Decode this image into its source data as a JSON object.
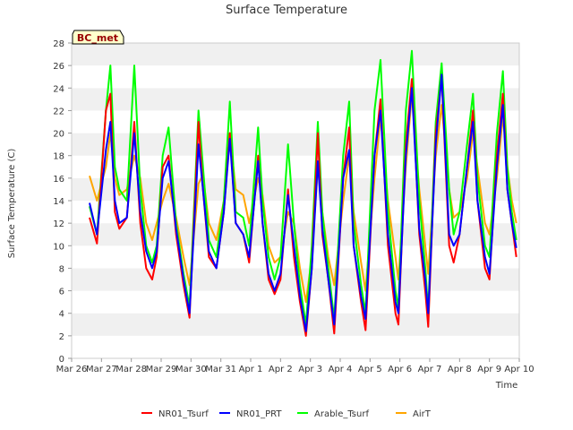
{
  "chart_data": {
    "type": "line",
    "title": "Surface Temperature",
    "xlabel": "Time",
    "ylabel": "Surface Temperature (C)",
    "site_label": "BC_met",
    "xlim": [
      0,
      15
    ],
    "ylim": [
      0,
      28
    ],
    "x_ticks": [
      {
        "v": 0,
        "label": "Mar 26"
      },
      {
        "v": 1,
        "label": "Mar 27"
      },
      {
        "v": 2,
        "label": "Mar 28"
      },
      {
        "v": 3,
        "label": "Mar 29"
      },
      {
        "v": 4,
        "label": "Mar 30"
      },
      {
        "v": 5,
        "label": "Mar 31"
      },
      {
        "v": 6,
        "label": "Apr 1"
      },
      {
        "v": 7,
        "label": "Apr 2"
      },
      {
        "v": 8,
        "label": "Apr 3"
      },
      {
        "v": 9,
        "label": "Apr 4"
      },
      {
        "v": 10,
        "label": "Apr 5"
      },
      {
        "v": 11,
        "label": "Apr 6"
      },
      {
        "v": 12,
        "label": "Apr 7"
      },
      {
        "v": 13,
        "label": "Apr 8"
      },
      {
        "v": 14,
        "label": "Apr 9"
      },
      {
        "v": 15,
        "label": "Apr 10"
      }
    ],
    "y_ticks": [
      0,
      2,
      4,
      6,
      8,
      10,
      12,
      14,
      16,
      18,
      20,
      22,
      24,
      26,
      28
    ],
    "grid": "horizontal bands",
    "legend_position": "bottom",
    "series": [
      {
        "name": "NR01_Tsurf",
        "color": "#ff0000",
        "points": [
          [
            0.6,
            12.5
          ],
          [
            0.85,
            10.2
          ],
          [
            1.15,
            22
          ],
          [
            1.3,
            23.5
          ],
          [
            1.45,
            13
          ],
          [
            1.6,
            11.5
          ],
          [
            1.85,
            12.5
          ],
          [
            2.1,
            21
          ],
          [
            2.3,
            12
          ],
          [
            2.5,
            8
          ],
          [
            2.7,
            7
          ],
          [
            2.85,
            9
          ],
          [
            3.05,
            17
          ],
          [
            3.25,
            18
          ],
          [
            3.5,
            11
          ],
          [
            3.75,
            6.5
          ],
          [
            3.95,
            3.6
          ],
          [
            4.25,
            21
          ],
          [
            4.4,
            15
          ],
          [
            4.6,
            9
          ],
          [
            4.85,
            8
          ],
          [
            5.1,
            13
          ],
          [
            5.3,
            20
          ],
          [
            5.5,
            12
          ],
          [
            5.75,
            11
          ],
          [
            5.95,
            8.5
          ],
          [
            6.25,
            18
          ],
          [
            6.4,
            12
          ],
          [
            6.6,
            7
          ],
          [
            6.8,
            5.7
          ],
          [
            7.0,
            7
          ],
          [
            7.25,
            15
          ],
          [
            7.45,
            9
          ],
          [
            7.65,
            5
          ],
          [
            7.85,
            2
          ],
          [
            8.05,
            8
          ],
          [
            8.25,
            20
          ],
          [
            8.4,
            11
          ],
          [
            8.6,
            7
          ],
          [
            8.8,
            2.2
          ],
          [
            9.1,
            16
          ],
          [
            9.3,
            20.5
          ],
          [
            9.45,
            10
          ],
          [
            9.7,
            5
          ],
          [
            9.85,
            2.5
          ],
          [
            10.15,
            18
          ],
          [
            10.35,
            23
          ],
          [
            10.6,
            10
          ],
          [
            10.85,
            4
          ],
          [
            10.95,
            3
          ],
          [
            11.2,
            19
          ],
          [
            11.4,
            24.8
          ],
          [
            11.65,
            11
          ],
          [
            11.85,
            6
          ],
          [
            11.95,
            2.8
          ],
          [
            12.2,
            20
          ],
          [
            12.4,
            25
          ],
          [
            12.65,
            10
          ],
          [
            12.8,
            8.5
          ],
          [
            13.0,
            11
          ],
          [
            13.25,
            17
          ],
          [
            13.45,
            22
          ],
          [
            13.6,
            14
          ],
          [
            13.85,
            8
          ],
          [
            14.0,
            7
          ],
          [
            14.25,
            18
          ],
          [
            14.45,
            23.5
          ],
          [
            14.6,
            15
          ],
          [
            14.75,
            12
          ],
          [
            14.9,
            9
          ]
        ]
      },
      {
        "name": "NR01_PRT",
        "color": "#0000ff",
        "points": [
          [
            0.6,
            13.8
          ],
          [
            0.85,
            11
          ],
          [
            1.15,
            18.5
          ],
          [
            1.3,
            21
          ],
          [
            1.45,
            14
          ],
          [
            1.6,
            12
          ],
          [
            1.85,
            12.5
          ],
          [
            2.1,
            20
          ],
          [
            2.3,
            13
          ],
          [
            2.5,
            9.5
          ],
          [
            2.7,
            8
          ],
          [
            2.85,
            9.5
          ],
          [
            3.05,
            16
          ],
          [
            3.25,
            17.5
          ],
          [
            3.5,
            11.5
          ],
          [
            3.75,
            7
          ],
          [
            3.95,
            4
          ],
          [
            4.25,
            19
          ],
          [
            4.4,
            15
          ],
          [
            4.6,
            9.5
          ],
          [
            4.85,
            8
          ],
          [
            5.1,
            13
          ],
          [
            5.3,
            19.5
          ],
          [
            5.5,
            12
          ],
          [
            5.75,
            11
          ],
          [
            5.95,
            9
          ],
          [
            6.25,
            17.5
          ],
          [
            6.4,
            12
          ],
          [
            6.6,
            7.5
          ],
          [
            6.8,
            6
          ],
          [
            7.0,
            7.5
          ],
          [
            7.25,
            14.5
          ],
          [
            7.45,
            10
          ],
          [
            7.65,
            5.5
          ],
          [
            7.85,
            2.4
          ],
          [
            8.05,
            8
          ],
          [
            8.25,
            17.5
          ],
          [
            8.4,
            11.5
          ],
          [
            8.6,
            7
          ],
          [
            8.8,
            3
          ],
          [
            9.1,
            16
          ],
          [
            9.3,
            18.5
          ],
          [
            9.45,
            10
          ],
          [
            9.7,
            5.5
          ],
          [
            9.85,
            3.5
          ],
          [
            10.15,
            18
          ],
          [
            10.35,
            22
          ],
          [
            10.6,
            11
          ],
          [
            10.85,
            5
          ],
          [
            10.95,
            4
          ],
          [
            11.2,
            18
          ],
          [
            11.4,
            24
          ],
          [
            11.65,
            11.5
          ],
          [
            11.85,
            7
          ],
          [
            11.95,
            4
          ],
          [
            12.2,
            19
          ],
          [
            12.4,
            25.2
          ],
          [
            12.65,
            11
          ],
          [
            12.8,
            10
          ],
          [
            13.0,
            11
          ],
          [
            13.25,
            17
          ],
          [
            13.45,
            21
          ],
          [
            13.6,
            14
          ],
          [
            13.85,
            9
          ],
          [
            14.0,
            7.5
          ],
          [
            14.25,
            17
          ],
          [
            14.45,
            22.5
          ],
          [
            14.6,
            15
          ],
          [
            14.75,
            12
          ],
          [
            14.9,
            9.8
          ]
        ]
      },
      {
        "name": "Arable_Tsurf",
        "color": "#00ff00",
        "points": [
          [
            0.6,
            13.5
          ],
          [
            0.85,
            11
          ],
          [
            1.15,
            22
          ],
          [
            1.3,
            26
          ],
          [
            1.45,
            17
          ],
          [
            1.6,
            15
          ],
          [
            1.85,
            14
          ],
          [
            2.1,
            26
          ],
          [
            2.3,
            15
          ],
          [
            2.5,
            10
          ],
          [
            2.7,
            8.5
          ],
          [
            2.85,
            10
          ],
          [
            3.05,
            18
          ],
          [
            3.25,
            20.5
          ],
          [
            3.5,
            12
          ],
          [
            3.75,
            7.5
          ],
          [
            3.95,
            4.6
          ],
          [
            4.25,
            22
          ],
          [
            4.4,
            17
          ],
          [
            4.6,
            10.5
          ],
          [
            4.85,
            9
          ],
          [
            5.1,
            14
          ],
          [
            5.3,
            22.8
          ],
          [
            5.5,
            13
          ],
          [
            5.75,
            12.5
          ],
          [
            5.95,
            10
          ],
          [
            6.25,
            20.5
          ],
          [
            6.4,
            14
          ],
          [
            6.6,
            9
          ],
          [
            6.8,
            7
          ],
          [
            7.0,
            9
          ],
          [
            7.25,
            19
          ],
          [
            7.45,
            12
          ],
          [
            7.65,
            6.5
          ],
          [
            7.85,
            3
          ],
          [
            8.05,
            10
          ],
          [
            8.25,
            21
          ],
          [
            8.4,
            13
          ],
          [
            8.6,
            8
          ],
          [
            8.8,
            3.5
          ],
          [
            9.1,
            18
          ],
          [
            9.3,
            22.8
          ],
          [
            9.45,
            12
          ],
          [
            9.7,
            6.5
          ],
          [
            9.85,
            4
          ],
          [
            10.15,
            22
          ],
          [
            10.35,
            26.5
          ],
          [
            10.6,
            13
          ],
          [
            10.85,
            6
          ],
          [
            10.95,
            4.5
          ],
          [
            11.2,
            22
          ],
          [
            11.4,
            27.3
          ],
          [
            11.65,
            14
          ],
          [
            11.85,
            8
          ],
          [
            11.95,
            4.2
          ],
          [
            12.2,
            21
          ],
          [
            12.4,
            26.2
          ],
          [
            12.65,
            15
          ],
          [
            12.8,
            11
          ],
          [
            13.0,
            13
          ],
          [
            13.25,
            19
          ],
          [
            13.45,
            23.5
          ],
          [
            13.6,
            16
          ],
          [
            13.85,
            10
          ],
          [
            14.0,
            9
          ],
          [
            14.25,
            20
          ],
          [
            14.45,
            25.5
          ],
          [
            14.6,
            17
          ],
          [
            14.75,
            13
          ],
          [
            14.9,
            10.5
          ]
        ]
      },
      {
        "name": "AirT",
        "color": "#ffa500",
        "points": [
          [
            0.6,
            16.2
          ],
          [
            0.85,
            14
          ],
          [
            1.15,
            17
          ],
          [
            1.3,
            20
          ],
          [
            1.45,
            16
          ],
          [
            1.6,
            14.5
          ],
          [
            1.85,
            15
          ],
          [
            2.1,
            18
          ],
          [
            2.3,
            16
          ],
          [
            2.5,
            12
          ],
          [
            2.7,
            10.5
          ],
          [
            2.85,
            12
          ],
          [
            3.05,
            14
          ],
          [
            3.25,
            15.5
          ],
          [
            3.5,
            12.5
          ],
          [
            3.75,
            9
          ],
          [
            3.95,
            6.5
          ],
          [
            4.25,
            15.5
          ],
          [
            4.4,
            16.3
          ],
          [
            4.6,
            12
          ],
          [
            4.85,
            10.5
          ],
          [
            5.1,
            14
          ],
          [
            5.3,
            20
          ],
          [
            5.5,
            15
          ],
          [
            5.75,
            14.5
          ],
          [
            5.95,
            12
          ],
          [
            6.25,
            16
          ],
          [
            6.4,
            14.5
          ],
          [
            6.6,
            10
          ],
          [
            6.8,
            8.5
          ],
          [
            7.0,
            9
          ],
          [
            7.25,
            13
          ],
          [
            7.45,
            12
          ],
          [
            7.65,
            8
          ],
          [
            7.85,
            5
          ],
          [
            8.05,
            9
          ],
          [
            8.25,
            17
          ],
          [
            8.4,
            13
          ],
          [
            8.6,
            9
          ],
          [
            8.8,
            6.5
          ],
          [
            9.1,
            14
          ],
          [
            9.3,
            18
          ],
          [
            9.45,
            13
          ],
          [
            9.7,
            8.5
          ],
          [
            9.85,
            6
          ],
          [
            10.15,
            16
          ],
          [
            10.35,
            21.5
          ],
          [
            10.6,
            14
          ],
          [
            10.85,
            9
          ],
          [
            10.95,
            7
          ],
          [
            11.2,
            17
          ],
          [
            11.4,
            23.5
          ],
          [
            11.65,
            15
          ],
          [
            11.85,
            10
          ],
          [
            11.95,
            7.5
          ],
          [
            12.2,
            18
          ],
          [
            12.4,
            22.5
          ],
          [
            12.65,
            15
          ],
          [
            12.8,
            12.5
          ],
          [
            13.0,
            13
          ],
          [
            13.25,
            16
          ],
          [
            13.45,
            20
          ],
          [
            13.6,
            17
          ],
          [
            13.85,
            12
          ],
          [
            14.0,
            11
          ],
          [
            14.25,
            16
          ],
          [
            14.45,
            21.5
          ],
          [
            14.6,
            17
          ],
          [
            14.75,
            14
          ],
          [
            14.9,
            12
          ]
        ]
      }
    ]
  }
}
